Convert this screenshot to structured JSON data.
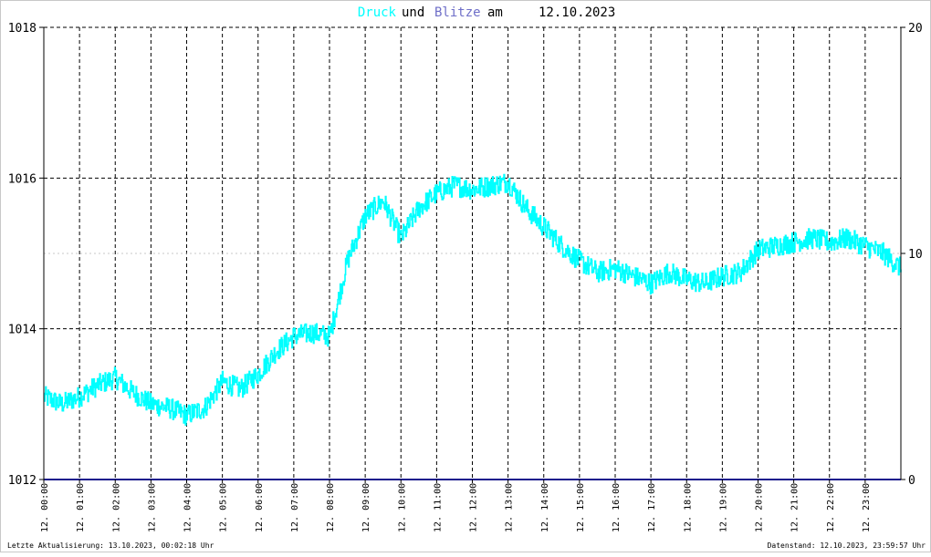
{
  "title": {
    "part1": "Druck",
    "part2": "und",
    "part3": "Blitze",
    "part4": "am",
    "part5": "12.10.2023"
  },
  "colors": {
    "pressure": "#00ffff",
    "lightning": "#1a1a8c",
    "title_dark": "#000000",
    "title_blitze": "#6e6ec8",
    "grid": "#000000",
    "axis": "#000000"
  },
  "footer": {
    "left": "Letzte Aktualisierung: 13.10.2023, 00:02:18 Uhr",
    "right": "Datenstand: 12.10.2023, 23:59:57 Uhr"
  },
  "chart_data": {
    "type": "line",
    "title": "Druck und Blitze am 12.10.2023",
    "y_left": {
      "min": 1012,
      "max": 1018,
      "ticks": [
        1012,
        1014,
        1016,
        1018
      ]
    },
    "y_right": {
      "min": 0,
      "max": 20,
      "ticks": [
        0,
        10,
        20
      ]
    },
    "x_ticks": [
      "12. 00:00",
      "12. 01:00",
      "12. 02:00",
      "12. 03:00",
      "12. 04:00",
      "12. 05:00",
      "12. 06:00",
      "12. 07:00",
      "12. 08:00",
      "12. 09:00",
      "12. 10:00",
      "12. 11:00",
      "12. 12:00",
      "12. 13:00",
      "12. 14:00",
      "12. 15:00",
      "12. 16:00",
      "12. 17:00",
      "12. 18:00",
      "12. 19:00",
      "12. 20:00",
      "12. 21:00",
      "12. 22:00",
      "12. 23:00"
    ],
    "grid": true,
    "series": [
      {
        "name": "Druck",
        "axis": "left",
        "x_hours": [
          0,
          0.5,
          1,
          1.5,
          2,
          2.5,
          3,
          3.5,
          4,
          4.5,
          5,
          5.5,
          6,
          6.5,
          7,
          7.5,
          8,
          8.5,
          9,
          9.5,
          10,
          10.5,
          11,
          11.5,
          12,
          12.5,
          13,
          13.5,
          14,
          14.5,
          15,
          15.5,
          16,
          16.5,
          17,
          17.5,
          18,
          18.5,
          19,
          19.5,
          20,
          20.5,
          21,
          21.5,
          22,
          22.5,
          23,
          23.5,
          24
        ],
        "values": [
          1013.1,
          1013.0,
          1013.1,
          1013.25,
          1013.35,
          1013.15,
          1013.0,
          1012.95,
          1012.85,
          1012.95,
          1013.3,
          1013.2,
          1013.4,
          1013.7,
          1013.9,
          1013.95,
          1013.9,
          1014.9,
          1015.5,
          1015.7,
          1015.2,
          1015.6,
          1015.8,
          1015.9,
          1015.85,
          1015.9,
          1015.95,
          1015.6,
          1015.35,
          1015.1,
          1014.9,
          1014.75,
          1014.8,
          1014.7,
          1014.6,
          1014.75,
          1014.65,
          1014.6,
          1014.7,
          1014.75,
          1015.05,
          1015.1,
          1015.15,
          1015.2,
          1015.15,
          1015.2,
          1015.1,
          1015.0,
          1014.8
        ]
      },
      {
        "name": "Blitze",
        "axis": "right",
        "x_hours": [
          0,
          24
        ],
        "values": [
          0,
          0
        ]
      }
    ]
  }
}
